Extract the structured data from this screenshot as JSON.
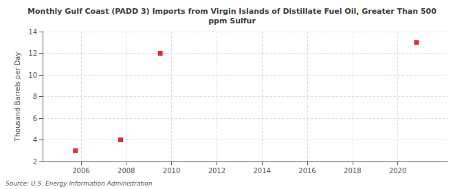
{
  "chart_data": {
    "type": "scatter",
    "title": "Monthly Gulf Coast (PADD 3) Imports from Virgin Islands of Distillate Fuel Oil, Greater Than 500\nppm Sulfur",
    "ylabel": "Thousand Barrels per Day",
    "source": "Source: U.S. Energy Information Administration",
    "x": [
      2005.75,
      2007.75,
      2009.5,
      2020.83
    ],
    "values": [
      3.0,
      4.0,
      12.0,
      13.0
    ],
    "color": "#cc0000",
    "marker": "square",
    "xlim": [
      2004.3,
      2022.2
    ],
    "xticks": [
      2006,
      2008,
      2010,
      2012,
      2014,
      2016,
      2018,
      2020
    ],
    "ylim": [
      2,
      14
    ],
    "yticks": [
      2,
      4,
      6,
      8,
      10,
      12,
      14
    ],
    "grid": true
  }
}
